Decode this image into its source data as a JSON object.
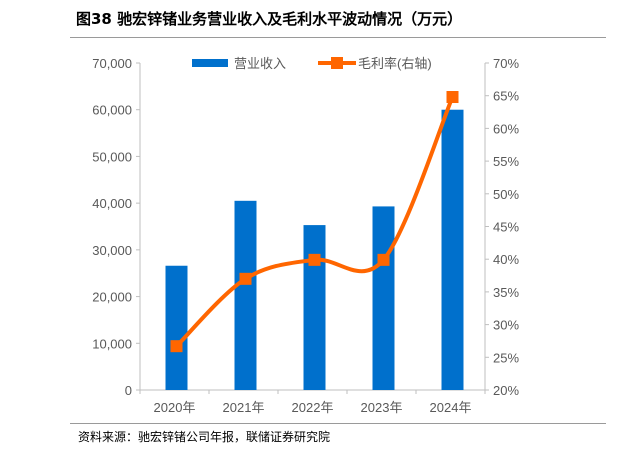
{
  "title": "图38 驰宏锌锗业务营业收入及毛利水平波动情况（万元）",
  "source": "资料来源：驰宏锌锗公司年报，联储证券研究院",
  "chart_data": {
    "type": "bar+line",
    "categories": [
      "2020年",
      "2021年",
      "2022年",
      "2023年",
      "2024年"
    ],
    "series": [
      {
        "name": "营业收入",
        "type": "bar",
        "axis": "left",
        "color": "#0070CC",
        "values": [
          26600,
          40500,
          35300,
          39300,
          60000
        ]
      },
      {
        "name": "毛利率(右轴)",
        "type": "line",
        "axis": "right",
        "color": "#FF6600",
        "marker": "square",
        "smooth": true,
        "values": [
          26.7,
          37.0,
          39.9,
          39.9,
          64.8
        ]
      }
    ],
    "left_axis": {
      "min": 0,
      "max": 70000,
      "ticks": [
        "0",
        "10,000",
        "20,000",
        "30,000",
        "40,000",
        "50,000",
        "60,000",
        "70,000"
      ]
    },
    "right_axis": {
      "min": 20,
      "max": 70,
      "ticks": [
        "20%",
        "25%",
        "30%",
        "35%",
        "40%",
        "45%",
        "50%",
        "55%",
        "60%",
        "65%",
        "70%"
      ]
    },
    "legend": "top",
    "grid": false
  }
}
